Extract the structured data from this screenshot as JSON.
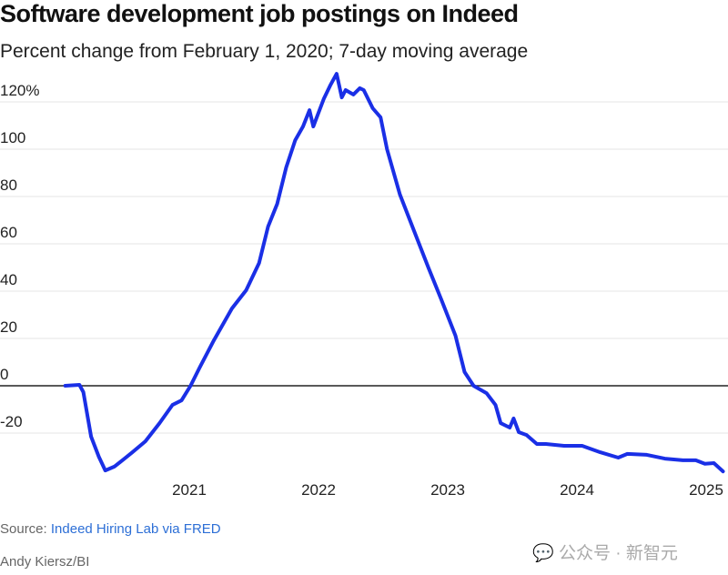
{
  "chart_data": {
    "type": "line",
    "title": "Software development job postings on Indeed",
    "subtitle": "Percent change from February 1, 2020; 7-day moving average",
    "xlabel": "",
    "ylabel": "",
    "xlim": [
      2020.0,
      2025.2
    ],
    "ylim": [
      -36,
      132
    ],
    "grid": true,
    "y_ticks": [
      -20,
      0,
      20,
      40,
      60,
      80,
      100,
      120
    ],
    "y_tick_labels": [
      "-20",
      "0",
      "20",
      "40",
      "60",
      "80",
      "100",
      "120%"
    ],
    "x_ticks": [
      2021,
      2022,
      2023,
      2024,
      2025
    ],
    "x_tick_labels": [
      "2021",
      "2022",
      "2023",
      "2024",
      "2025"
    ],
    "series": [
      {
        "name": "Software development",
        "color": "#1a2fe6",
        "x": [
          2020.04,
          2020.15,
          2020.18,
          2020.24,
          2020.3,
          2020.35,
          2020.42,
          2020.49,
          2020.56,
          2020.66,
          2020.77,
          2020.87,
          2020.94,
          2021.01,
          2021.08,
          2021.19,
          2021.33,
          2021.44,
          2021.54,
          2021.61,
          2021.68,
          2021.75,
          2021.82,
          2021.88,
          2021.93,
          2021.96,
          2022.04,
          2022.09,
          2022.14,
          2022.18,
          2022.21,
          2022.27,
          2022.32,
          2022.35,
          2022.42,
          2022.48,
          2022.53,
          2022.63,
          2022.74,
          2022.85,
          2022.95,
          2023.06,
          2023.13,
          2023.2,
          2023.3,
          2023.37,
          2023.41,
          2023.48,
          2023.51,
          2023.55,
          2023.61,
          2023.69,
          2023.76,
          2023.9,
          2024.04,
          2024.18,
          2024.32,
          2024.39,
          2024.54,
          2024.68,
          2024.82,
          2024.92,
          2024.99,
          2025.06,
          2025.13
        ],
        "y": [
          0,
          0.4,
          -2.7,
          -21.5,
          -30,
          -35.8,
          -34.2,
          -31.2,
          -28.1,
          -23.5,
          -15.8,
          -8.1,
          -6.2,
          0,
          7.7,
          19.2,
          32.7,
          40.4,
          51.9,
          67.3,
          76.9,
          92.3,
          103.8,
          109.6,
          116.5,
          109.6,
          121.2,
          126.9,
          131.9,
          121.9,
          125,
          123.1,
          125.8,
          125,
          117.3,
          113.5,
          100,
          80.8,
          65.4,
          50,
          36.5,
          21.2,
          5.8,
          0,
          -3.1,
          -8.1,
          -15.8,
          -17.7,
          -13.8,
          -19.6,
          -20.8,
          -24.6,
          -24.6,
          -25.4,
          -25.4,
          -28.1,
          -30.4,
          -28.8,
          -29.2,
          -30.8,
          -31.5,
          -31.5,
          -33,
          -32.7,
          -36.2
        ]
      }
    ]
  },
  "footer": {
    "source_label": "Source:",
    "source_link": "Indeed Hiring Lab via FRED",
    "credit": "Andy Kiersz/BI",
    "watermark": "公众号 · 新智元"
  }
}
